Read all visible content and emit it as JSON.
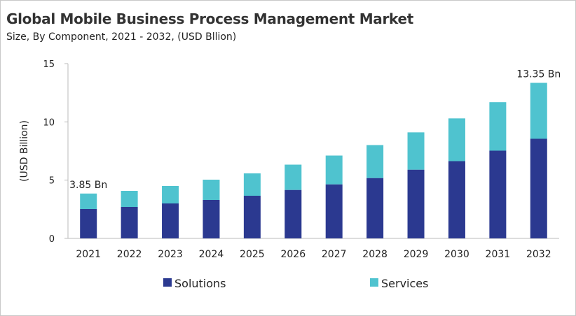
{
  "chart_data": {
    "type": "bar",
    "stacked": true,
    "title": "Global Mobile Business Process Management Market",
    "subtitle": "Size, By Component, 2021 - 2032, (USD Bllion)",
    "xlabel": "",
    "ylabel": "(USD Billion)",
    "ylim": [
      0,
      15
    ],
    "yticks": [
      "0",
      "5",
      "10",
      "15"
    ],
    "grid": false,
    "legend_position": "bottom",
    "categories": [
      "2021",
      "2022",
      "2023",
      "2024",
      "2025",
      "2026",
      "2027",
      "2028",
      "2029",
      "2030",
      "2031",
      "2032"
    ],
    "series": [
      {
        "name": "Solutions",
        "color": "#2b3990",
        "values": [
          2.52,
          2.7,
          3.0,
          3.3,
          3.66,
          4.16,
          4.64,
          5.18,
          5.9,
          6.63,
          7.53,
          8.55
        ]
      },
      {
        "name": "Services",
        "color": "#4fc3cf",
        "values": [
          1.33,
          1.38,
          1.5,
          1.74,
          1.92,
          2.17,
          2.47,
          2.83,
          3.2,
          3.67,
          4.16,
          4.8
        ]
      }
    ],
    "annotations": [
      {
        "category": "2021",
        "text": "3.85 Bn"
      },
      {
        "category": "2032",
        "text": "13.35 Bn"
      }
    ]
  }
}
